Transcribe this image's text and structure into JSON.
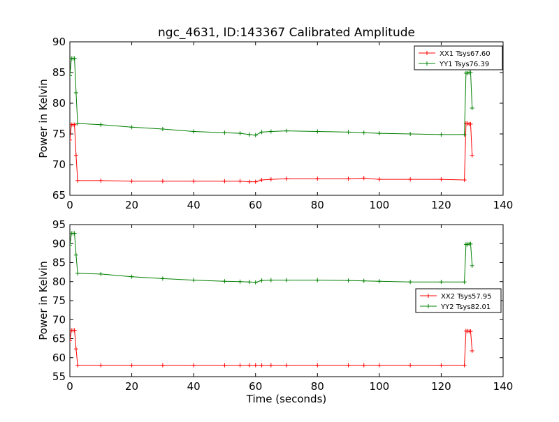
{
  "title": "ngc_4631, ID:143367 Calibrated Amplitude",
  "colors": {
    "xx": "#ff0000",
    "yy": "#008000"
  },
  "chart_data": [
    {
      "type": "line",
      "xlabel": "",
      "ylabel": "Power in Kelvin",
      "xlim": [
        0,
        140
      ],
      "ylim": [
        65,
        90
      ],
      "xticks": [
        "0",
        "20",
        "40",
        "60",
        "80",
        "100",
        "120",
        "140"
      ],
      "yticks": [
        "65",
        "70",
        "75",
        "80",
        "85",
        "90"
      ],
      "grid": false,
      "legend_position": "top-right",
      "series": [
        {
          "name": "XX1 Tsys67.60",
          "color": "#ff0000",
          "x": [
            0,
            0.5,
            1,
            1.5,
            2,
            2.5,
            10,
            20,
            30,
            40,
            50,
            55,
            58,
            60,
            62,
            65,
            70,
            80,
            90,
            95,
            100,
            110,
            120,
            127.5,
            128,
            128.5,
            129,
            129.5,
            130
          ],
          "y": [
            74,
            76.5,
            76.5,
            76.5,
            71.5,
            67.4,
            67.4,
            67.3,
            67.3,
            67.3,
            67.3,
            67.3,
            67.2,
            67.2,
            67.5,
            67.6,
            67.7,
            67.7,
            67.7,
            67.8,
            67.6,
            67.6,
            67.6,
            67.5,
            76.7,
            76.7,
            76.6,
            76.6,
            71.5
          ]
        },
        {
          "name": "YY1 Tsys76.39",
          "color": "#008000",
          "x": [
            0,
            0.5,
            1,
            1.5,
            2,
            2.5,
            10,
            20,
            30,
            40,
            50,
            55,
            58,
            60,
            62,
            65,
            70,
            80,
            90,
            95,
            100,
            110,
            120,
            127.5,
            128,
            128.5,
            129,
            129.5,
            130
          ],
          "y": [
            84.5,
            87.3,
            87.3,
            87.3,
            81.7,
            76.7,
            76.5,
            76.1,
            75.8,
            75.4,
            75.2,
            75.1,
            74.9,
            74.8,
            75.3,
            75.4,
            75.5,
            75.4,
            75.3,
            75.2,
            75.1,
            75.0,
            74.9,
            74.9,
            84.9,
            84.9,
            85.0,
            85.0,
            79.2
          ]
        }
      ]
    },
    {
      "type": "line",
      "xlabel": "Time (seconds)",
      "ylabel": "Power in Kelvin",
      "xlim": [
        0,
        140
      ],
      "ylim": [
        55,
        95
      ],
      "xticks": [
        "0",
        "20",
        "40",
        "60",
        "80",
        "100",
        "120",
        "140"
      ],
      "yticks": [
        "55",
        "60",
        "65",
        "70",
        "75",
        "80",
        "85",
        "90",
        "95"
      ],
      "grid": false,
      "legend_position": "center-right",
      "series": [
        {
          "name": "XX2 Tsys57.95",
          "color": "#ff0000",
          "x": [
            0,
            0.5,
            1,
            1.5,
            2,
            2.5,
            10,
            20,
            30,
            40,
            50,
            55,
            58,
            60,
            62,
            65,
            70,
            80,
            90,
            95,
            100,
            110,
            120,
            127.5,
            128,
            128.5,
            129,
            129.5,
            130
          ],
          "y": [
            64.5,
            67.2,
            67.2,
            67.2,
            62.3,
            58.0,
            58.0,
            58.0,
            58.0,
            58.0,
            58.0,
            58.0,
            58.0,
            58.0,
            58.0,
            58.0,
            58.0,
            58.0,
            58.0,
            58.0,
            58.0,
            58.0,
            58.0,
            58.0,
            67.0,
            67.0,
            66.9,
            66.9,
            61.8
          ]
        },
        {
          "name": "YY2 Tsys82.01",
          "color": "#008000",
          "x": [
            0,
            0.5,
            1,
            1.5,
            2,
            2.5,
            10,
            20,
            30,
            40,
            50,
            55,
            58,
            60,
            62,
            65,
            70,
            80,
            90,
            95,
            100,
            110,
            120,
            127.5,
            128,
            128.5,
            129,
            129.5,
            130
          ],
          "y": [
            89.5,
            92.7,
            92.7,
            92.7,
            87.0,
            82.2,
            82.0,
            81.3,
            80.8,
            80.4,
            80.1,
            80.0,
            79.9,
            79.8,
            80.3,
            80.4,
            80.4,
            80.4,
            80.3,
            80.2,
            80.1,
            79.9,
            79.9,
            79.9,
            89.8,
            89.8,
            89.9,
            89.9,
            84.2
          ]
        }
      ]
    }
  ]
}
